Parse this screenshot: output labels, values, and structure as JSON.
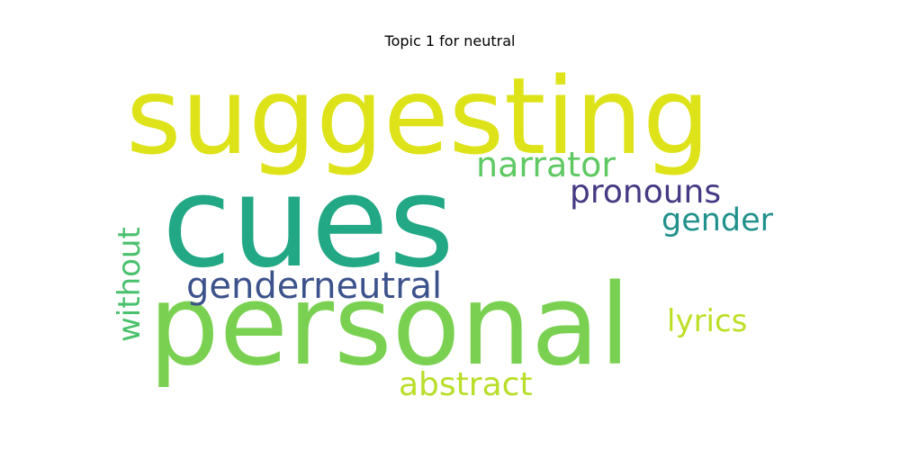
{
  "chart_data": {
    "type": "wordcloud",
    "title": "Topic 1 for neutral",
    "words": [
      {
        "text": "suggesting",
        "weight": 1.0,
        "color": "#dde318"
      },
      {
        "text": "cues",
        "weight": 0.97,
        "color": "#22a884"
      },
      {
        "text": "personal",
        "weight": 0.93,
        "color": "#7ad151"
      },
      {
        "text": "narrator",
        "weight": 0.33,
        "color": "#5ec962"
      },
      {
        "text": "pronouns",
        "weight": 0.31,
        "color": "#443983"
      },
      {
        "text": "gender",
        "weight": 0.29,
        "color": "#21918c"
      },
      {
        "text": "genderneutral",
        "weight": 0.36,
        "color": "#3b528b"
      },
      {
        "text": "without",
        "weight": 0.3,
        "color": "#4ac16d"
      },
      {
        "text": "lyrics",
        "weight": 0.28,
        "color": "#bddf26"
      },
      {
        "text": "abstract",
        "weight": 0.33,
        "color": "#b8de29"
      }
    ]
  }
}
